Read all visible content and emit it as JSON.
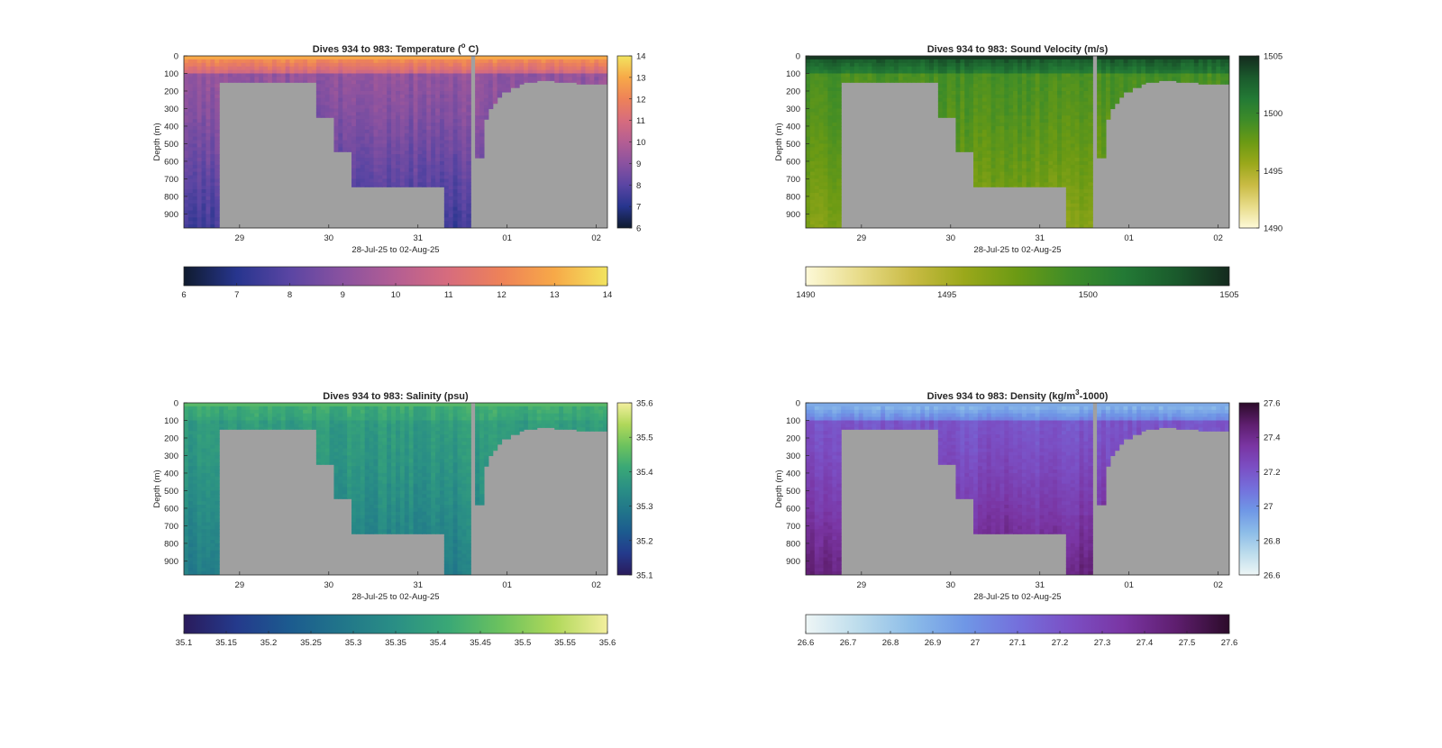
{
  "chart_data": [
    {
      "type": "heatmap",
      "title": "Dives 934 to 983: Temperature (° C)",
      "title_pre": "Dives 934 to 983: Temperature (",
      "title_sup": "o",
      "title_post": " C)",
      "ylabel": "Depth (m)",
      "xlabel": "28-Jul-25 to 02-Aug-25",
      "x_ticks": [
        "29",
        "30",
        "31",
        "01",
        "02"
      ],
      "y_ticks": [
        "0",
        "100",
        "200",
        "300",
        "400",
        "500",
        "600",
        "700",
        "800",
        "900"
      ],
      "xlim": [
        "28-Jul-25 09:00",
        "02-Aug-25 03:00"
      ],
      "ylim": [
        0,
        980
      ],
      "colormap": [
        "#0f1b2e",
        "#27358e",
        "#5a45a3",
        "#8a52a0",
        "#b45e93",
        "#d76c7d",
        "#ee8258",
        "#f7a948",
        "#f2e45f"
      ],
      "colorbar_ticks": [
        "6",
        "7",
        "8",
        "9",
        "10",
        "11",
        "12",
        "13",
        "14"
      ],
      "colorbar_range": [
        6,
        14
      ],
      "horizontal_colorbar_ticks": [
        "6",
        "7",
        "8",
        "9",
        "10",
        "11",
        "12",
        "13",
        "14"
      ],
      "surface_value": 12.5,
      "deep_value": 9.2,
      "bottom_value": 7.4,
      "no_data_color": "#a0a0a0"
    },
    {
      "type": "heatmap",
      "title": "Dives 934 to 983: Sound Velocity (m/s)",
      "ylabel": "Depth (m)",
      "xlabel": "28-Jul-25 to 02-Aug-25",
      "x_ticks": [
        "29",
        "30",
        "31",
        "01",
        "02"
      ],
      "y_ticks": [
        "0",
        "100",
        "200",
        "300",
        "400",
        "500",
        "600",
        "700",
        "800",
        "900"
      ],
      "xlim": [
        "28-Jul-25 09:00",
        "02-Aug-25 03:00"
      ],
      "ylim": [
        0,
        980
      ],
      "colormap": [
        "#fdf9d8",
        "#e8dc8a",
        "#c9bb44",
        "#9aa81a",
        "#6b9a14",
        "#3e8c28",
        "#237a35",
        "#1a5a2c",
        "#142a1e"
      ],
      "colorbar_ticks": [
        "1490",
        "1495",
        "1500",
        "1505"
      ],
      "colorbar_range": [
        1490,
        1505
      ],
      "horizontal_colorbar_ticks": [
        "1490",
        "1495",
        "1500",
        "1505"
      ],
      "surface_value": 1503.5,
      "deep_value": 1499.0,
      "bottom_value": 1496.5,
      "no_data_color": "#a0a0a0"
    },
    {
      "type": "heatmap",
      "title": "Dives 934 to 983: Salinity (psu)",
      "ylabel": "Depth (m)",
      "xlabel": "28-Jul-25 to 02-Aug-25",
      "x_ticks": [
        "29",
        "30",
        "31",
        "01",
        "02"
      ],
      "y_ticks": [
        "0",
        "100",
        "200",
        "300",
        "400",
        "500",
        "600",
        "700",
        "800",
        "900"
      ],
      "xlim": [
        "28-Jul-25 09:00",
        "02-Aug-25 03:00"
      ],
      "ylim": [
        0,
        980
      ],
      "colormap": [
        "#2a1b5c",
        "#243a8c",
        "#1c5b8f",
        "#21768a",
        "#2a8f85",
        "#3aa876",
        "#6cc25e",
        "#b0d85a",
        "#f3ef9e"
      ],
      "colorbar_ticks": [
        "35.1",
        "35.2",
        "35.3",
        "35.4",
        "35.5",
        "35.6"
      ],
      "colorbar_range": [
        35.1,
        35.6
      ],
      "horizontal_colorbar_ticks": [
        "35.1",
        "35.15",
        "35.2",
        "35.25",
        "35.3",
        "35.35",
        "35.4",
        "35.45",
        "35.5",
        "35.55",
        "35.6"
      ],
      "surface_value": 35.42,
      "deep_value": 35.38,
      "bottom_value": 35.3,
      "no_data_color": "#a0a0a0"
    },
    {
      "type": "heatmap",
      "title": "Dives 934 to 983: Density (kg/m³-1000)",
      "title_pre": "Dives 934 to 983: Density (kg/m",
      "title_sup": "3",
      "title_post": "-1000)",
      "ylabel": "Depth (m)",
      "xlabel": "28-Jul-25 to 02-Aug-25",
      "x_ticks": [
        "29",
        "30",
        "31",
        "01",
        "02"
      ],
      "y_ticks": [
        "0",
        "100",
        "200",
        "300",
        "400",
        "500",
        "600",
        "700",
        "800",
        "900"
      ],
      "xlim": [
        "28-Jul-25 09:00",
        "02-Aug-25 03:00"
      ],
      "ylim": [
        0,
        980
      ],
      "colormap": [
        "#eef6f6",
        "#bcdcec",
        "#8cbce8",
        "#6f97e6",
        "#7470dc",
        "#7b4fc4",
        "#7a35a3",
        "#5e1e6e",
        "#2c0b2a"
      ],
      "colorbar_ticks": [
        "26.6",
        "26.8",
        "27",
        "27.2",
        "27.4",
        "27.6"
      ],
      "colorbar_range": [
        26.6,
        27.6
      ],
      "horizontal_colorbar_ticks": [
        "26.6",
        "26.7",
        "26.8",
        "26.9",
        "27",
        "27.1",
        "27.2",
        "27.3",
        "27.4",
        "27.5",
        "27.6"
      ],
      "surface_value": 26.85,
      "deep_value": 27.2,
      "bottom_value": 27.45,
      "no_data_color": "#a0a0a0"
    }
  ]
}
